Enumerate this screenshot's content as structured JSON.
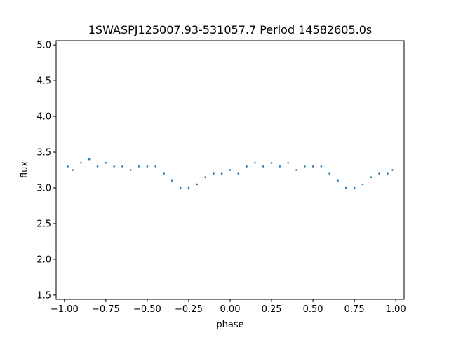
{
  "chart_data": {
    "type": "scatter",
    "title": "1SWASPJ125007.93-531057.7 Period 14582605.0s",
    "xlabel": "phase",
    "ylabel": "flux",
    "xlim": [
      -1.05,
      1.05
    ],
    "ylim": [
      1.44,
      5.06
    ],
    "xticks": [
      -1.0,
      -0.75,
      -0.5,
      -0.25,
      0.0,
      0.25,
      0.5,
      0.75,
      1.0
    ],
    "xtick_labels": [
      "−1.00",
      "−0.75",
      "−0.50",
      "−0.25",
      "0.00",
      "0.25",
      "0.50",
      "0.75",
      "1.00"
    ],
    "yticks": [
      1.5,
      2.0,
      2.5,
      3.0,
      3.5,
      4.0,
      4.5,
      5.0
    ],
    "ytick_labels": [
      "1.5",
      "2.0",
      "2.5",
      "3.0",
      "3.5",
      "4.0",
      "4.5",
      "5.0"
    ],
    "grid": false,
    "legend": "none",
    "marker_color": "#1f77b4",
    "series": [
      {
        "x": [
          -0.98,
          -0.95,
          -0.9,
          -0.85,
          -0.8,
          -0.75,
          -0.7,
          -0.65,
          -0.6,
          -0.55,
          -0.5,
          -0.45,
          -0.4,
          -0.35,
          -0.3,
          -0.25,
          -0.2,
          -0.15,
          -0.1,
          -0.05,
          0.0,
          0.05,
          0.1,
          0.15,
          0.2,
          0.25,
          0.3,
          0.35,
          0.4,
          0.45,
          0.5,
          0.55,
          0.6,
          0.65,
          0.7,
          0.75,
          0.8,
          0.85,
          0.9,
          0.95,
          0.98
        ],
        "y": [
          3.3,
          3.25,
          3.35,
          3.4,
          3.3,
          3.35,
          3.3,
          3.3,
          3.25,
          3.3,
          3.3,
          3.3,
          3.2,
          3.1,
          3.0,
          3.0,
          3.05,
          3.15,
          3.2,
          3.2,
          3.25,
          3.2,
          3.3,
          3.35,
          3.3,
          3.35,
          3.3,
          3.35,
          3.25,
          3.3,
          3.3,
          3.3,
          3.2,
          3.1,
          3.0,
          3.0,
          3.05,
          3.15,
          3.2,
          3.2,
          3.25
        ]
      }
    ]
  }
}
